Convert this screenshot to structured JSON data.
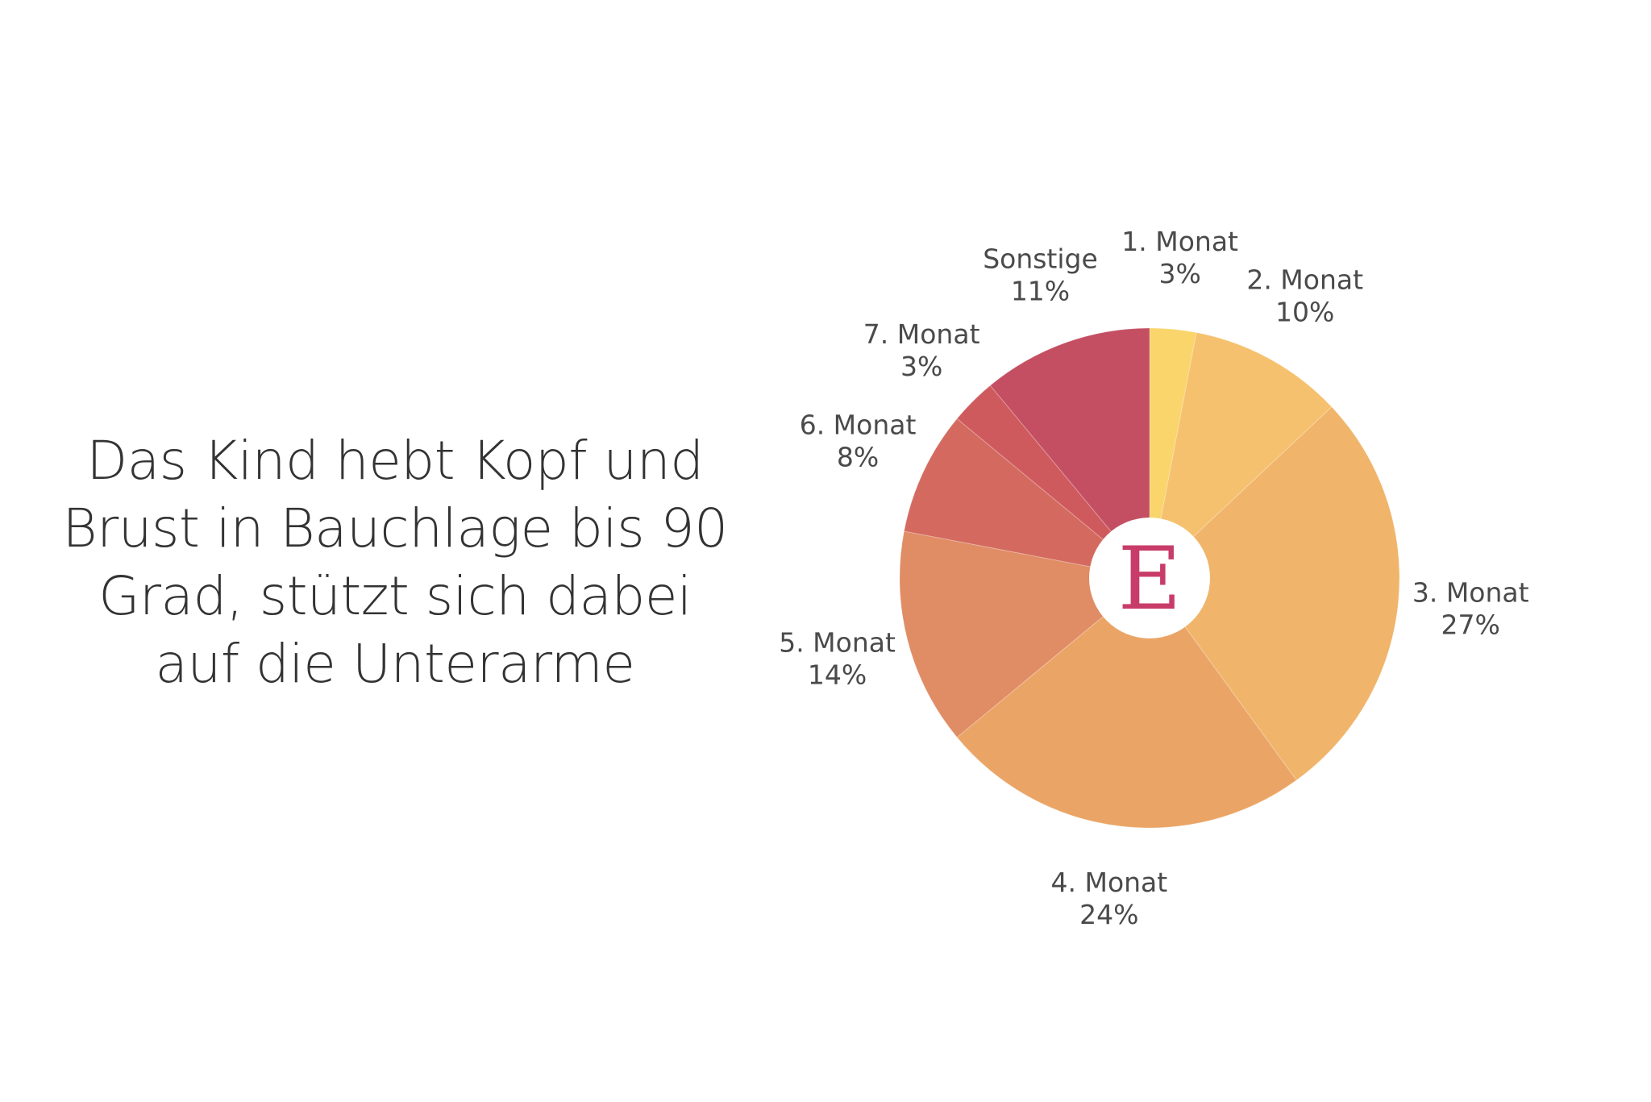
{
  "headline": "Das Kind hebt Kopf und Brust in Bauchlage bis 90 Grad, stützt sich dabei auf die Unterarme",
  "logo": {
    "letter": "E",
    "color": "#c83c6a"
  },
  "chart_data": {
    "type": "pie",
    "style": "donut",
    "start_angle": "12 o'clock",
    "direction": "clockwise",
    "categories": [
      "1. Monat",
      "2. Monat",
      "3. Monat",
      "4. Monat",
      "5. Monat",
      "6. Monat",
      "7. Monat",
      "Sonstige"
    ],
    "values": [
      3,
      10,
      27,
      24,
      14,
      8,
      3,
      11
    ],
    "value_labels": [
      "3%",
      "10%",
      "27%",
      "24%",
      "14%",
      "8%",
      "3%",
      "11%"
    ],
    "colors": [
      "#f9d56b",
      "#f6c16e",
      "#f0b46a",
      "#eaa566",
      "#e08c64",
      "#d46a5f",
      "#cf5a5e",
      "#c44f62"
    ]
  }
}
